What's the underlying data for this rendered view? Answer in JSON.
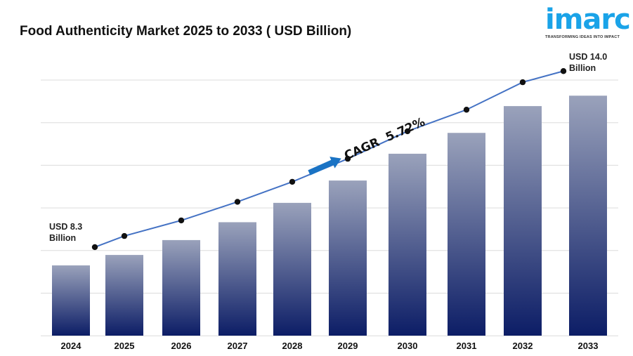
{
  "chart_data": {
    "type": "bar",
    "title": "Food Authenticity Market 2025 to 2033 ( USD Billion)",
    "categories": [
      "2024",
      "2025",
      "2026",
      "2027",
      "2028",
      "2029",
      "2030",
      "2031",
      "2032",
      "2033"
    ],
    "values": [
      8.3,
      8.65,
      9.15,
      9.75,
      10.4,
      11.15,
      12.05,
      12.75,
      13.65,
      14.0
    ],
    "line_overlay": true,
    "grid": "horizontal",
    "annotations": {
      "start": "USD 8.3",
      "start_unit": "Billion",
      "end": "USD 14.0",
      "end_unit": "Billion",
      "cagr": "CAGR  5.72%"
    },
    "colors": {
      "bar_top": "#9aa2bb",
      "bar_bottom": "#0c1d66",
      "line": "#4472c4",
      "arrow": "#1a73c4"
    }
  },
  "logo": {
    "word": "imarc",
    "tagline": "TRANSFORMING IDEAS INTO IMPACT"
  }
}
